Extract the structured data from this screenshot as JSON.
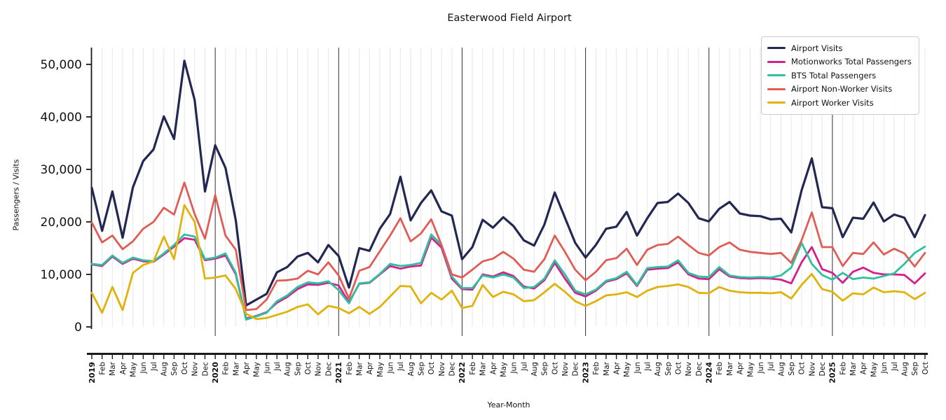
{
  "figure": {
    "title": "Easterwood Field Airport",
    "xlabel": "Year-Month",
    "ylabel": "Passengers / Visits"
  },
  "chart_data": {
    "type": "line",
    "title": "Easterwood Field Airport",
    "xlabel": "Year-Month",
    "ylabel": "Passengers / Visits",
    "ylim": [
      0,
      53200
    ],
    "yticks": [
      0,
      10000,
      20000,
      30000,
      40000,
      50000
    ],
    "ytick_labels": [
      "0",
      "10,000",
      "20,000",
      "30,000",
      "40,000",
      "50,000"
    ],
    "grid": "light vertical gridline per month; dark vertical line at each year start",
    "legend_position": "upper right",
    "x": [
      "2019",
      "Feb",
      "Mar",
      "Apr",
      "May",
      "Jun",
      "Jul",
      "Aug",
      "Sep",
      "Oct",
      "Nov",
      "Dec",
      "2020",
      "Feb",
      "Mar",
      "Apr",
      "May",
      "Jun",
      "Jul",
      "Aug",
      "Sep",
      "Oct",
      "Nov",
      "Dec",
      "2021",
      "Feb",
      "Mar",
      "Apr",
      "May",
      "Jun",
      "Jul",
      "Aug",
      "Sep",
      "Oct",
      "Nov",
      "Dec",
      "2022",
      "Feb",
      "Mar",
      "Apr",
      "May",
      "Jun",
      "Jul",
      "Aug",
      "Sep",
      "Oct",
      "Nov",
      "Dec",
      "2023",
      "Feb",
      "Mar",
      "Apr",
      "May",
      "Jun",
      "Jul",
      "Aug",
      "Sep",
      "Oct",
      "Nov",
      "Dec",
      "2024",
      "Feb",
      "Mar",
      "Apr",
      "May",
      "Jun",
      "Jul",
      "Aug",
      "Sep",
      "Oct",
      "Nov",
      "Dec",
      "2025",
      "Feb",
      "Mar",
      "Apr",
      "May",
      "Jun",
      "Jul",
      "Aug",
      "Sep",
      "Oct"
    ],
    "series": [
      {
        "name": "Airport Visits",
        "color": "#232852",
        "values": [
          26500,
          18300,
          25800,
          17000,
          26600,
          31600,
          33800,
          40100,
          35800,
          50700,
          43200,
          25800,
          34600,
          30300,
          20300,
          4100,
          5200,
          6300,
          10400,
          11400,
          13400,
          14100,
          12300,
          15600,
          13500,
          7500,
          15000,
          14500,
          18700,
          21500,
          28600,
          20300,
          23600,
          26000,
          22000,
          21200,
          12900,
          15200,
          20400,
          18900,
          20900,
          19200,
          16500,
          15500,
          19500,
          25600,
          20800,
          16000,
          13200,
          15600,
          18700,
          19100,
          21900,
          17400,
          20700,
          23600,
          23800,
          25400,
          23600,
          20700,
          20100,
          22500,
          23800,
          21600,
          21200,
          21100,
          20500,
          20600,
          18000,
          26000,
          32100,
          22800,
          22600,
          17100,
          20800,
          20600,
          23700,
          20100,
          21400,
          20800,
          17100,
          21300
        ]
      },
      {
        "name": "Motionworks Total Passengers",
        "color": "#d2208e",
        "values": [
          11900,
          11600,
          13400,
          12000,
          13000,
          12500,
          12400,
          13800,
          15300,
          16900,
          16600,
          12700,
          13000,
          13600,
          10000,
          1600,
          2100,
          2800,
          4600,
          5700,
          7200,
          8100,
          8000,
          8400,
          7900,
          4700,
          8200,
          8400,
          10000,
          11600,
          11100,
          11500,
          11700,
          17000,
          15100,
          9200,
          7200,
          7100,
          10000,
          9600,
          10400,
          9700,
          7700,
          7300,
          8900,
          12200,
          9200,
          6500,
          5800,
          6900,
          8600,
          9100,
          10200,
          7800,
          10900,
          11100,
          11200,
          12300,
          10000,
          9200,
          9100,
          11000,
          9600,
          9300,
          9200,
          9300,
          9200,
          9000,
          8300,
          12300,
          15200,
          11000,
          10300,
          8400,
          10500,
          11300,
          10300,
          10000,
          10000,
          9900,
          8300,
          10200
        ]
      },
      {
        "name": "BTS Total Passengers",
        "color": "#2fc0a0",
        "values": [
          12000,
          11800,
          13600,
          12200,
          13200,
          12700,
          12500,
          14000,
          15600,
          17600,
          17200,
          12900,
          13200,
          14000,
          10300,
          1400,
          2000,
          2700,
          4900,
          6000,
          7600,
          8500,
          8300,
          8700,
          7000,
          4500,
          8300,
          8500,
          10100,
          12000,
          11600,
          11800,
          12200,
          17600,
          15600,
          9600,
          7400,
          7400,
          9800,
          9400,
          10000,
          9400,
          7400,
          7600,
          9200,
          12700,
          10000,
          6900,
          6200,
          7100,
          8800,
          9300,
          10500,
          8000,
          11200,
          11400,
          11500,
          12700,
          10300,
          9600,
          9500,
          11400,
          9800,
          9500,
          9400,
          9500,
          9400,
          9800,
          11300,
          16000,
          12000,
          9900,
          9000,
          10300,
          9100,
          9400,
          9200,
          9700,
          10200,
          12000,
          14100,
          15300
        ]
      },
      {
        "name": "Airport Non-Worker Visits",
        "color": "#e05d56",
        "values": [
          19900,
          16100,
          17400,
          14800,
          16300,
          18700,
          20000,
          22700,
          21400,
          27500,
          21500,
          16800,
          25100,
          17400,
          14700,
          3200,
          3400,
          5200,
          8800,
          8900,
          9200,
          10700,
          10000,
          12300,
          9800,
          5400,
          10700,
          11400,
          14400,
          17400,
          20700,
          16300,
          17800,
          20500,
          15600,
          10000,
          9400,
          10900,
          12500,
          13000,
          14300,
          13000,
          10900,
          10500,
          12900,
          17400,
          14300,
          10900,
          8900,
          10500,
          12700,
          13100,
          14900,
          11800,
          14700,
          15600,
          15800,
          17200,
          15600,
          14100,
          13600,
          15200,
          16100,
          14700,
          14300,
          14100,
          13900,
          14100,
          12200,
          16500,
          21800,
          15200,
          15200,
          11600,
          14100,
          13900,
          16100,
          13800,
          14900,
          14000,
          11500,
          14100
        ]
      },
      {
        "name": "Airport Worker Visits",
        "color": "#dfb30c",
        "values": [
          6500,
          2700,
          7600,
          3200,
          10300,
          11800,
          12500,
          17200,
          12900,
          23200,
          20000,
          9200,
          9400,
          9800,
          7200,
          2500,
          1500,
          1700,
          2300,
          2900,
          3800,
          4300,
          2400,
          4000,
          3600,
          2600,
          3800,
          2500,
          3800,
          5800,
          7800,
          7700,
          4500,
          6500,
          5200,
          6900,
          3600,
          4000,
          8000,
          5700,
          6700,
          6200,
          4900,
          5100,
          6600,
          8200,
          6700,
          4900,
          4000,
          4900,
          6000,
          6200,
          6600,
          5700,
          6900,
          7600,
          7800,
          8100,
          7600,
          6500,
          6400,
          7600,
          6900,
          6600,
          6500,
          6500,
          6400,
          6600,
          5400,
          8000,
          10100,
          7200,
          6700,
          5000,
          6400,
          6200,
          7500,
          6600,
          6800,
          6600,
          5300,
          6500
        ]
      }
    ]
  }
}
